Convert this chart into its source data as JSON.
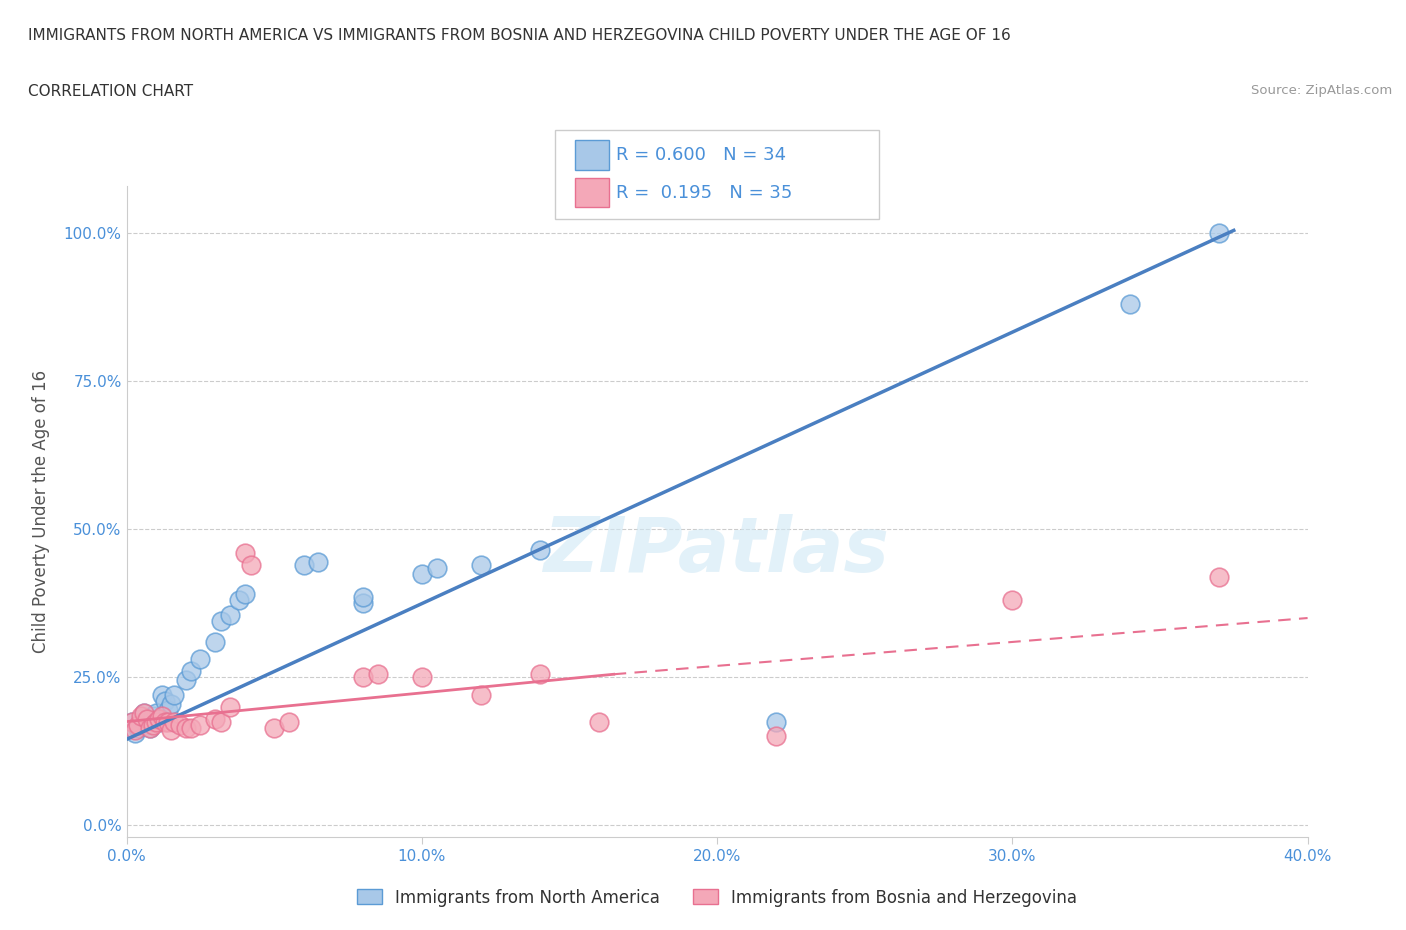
{
  "title": "IMMIGRANTS FROM NORTH AMERICA VS IMMIGRANTS FROM BOSNIA AND HERZEGOVINA CHILD POVERTY UNDER THE AGE OF 16",
  "subtitle": "CORRELATION CHART",
  "source": "Source: ZipAtlas.com",
  "ylabel": "Child Poverty Under the Age of 16",
  "xlim": [
    0.0,
    0.4
  ],
  "ylim": [
    -0.02,
    1.08
  ],
  "yticks": [
    0.0,
    0.25,
    0.5,
    0.75,
    1.0
  ],
  "ytick_labels": [
    "0.0%",
    "25.0%",
    "50.0%",
    "75.0%",
    "100.0%"
  ],
  "xticks": [
    0.0,
    0.1,
    0.2,
    0.3,
    0.4
  ],
  "xtick_labels": [
    "0.0%",
    "10.0%",
    "20.0%",
    "30.0%",
    "40.0%"
  ],
  "watermark": "ZIPatlas",
  "legend_blue_label": "Immigrants from North America",
  "legend_pink_label": "Immigrants from Bosnia and Herzegovina",
  "legend_blue_color": "#a8c8e8",
  "legend_pink_color": "#f4a8b8",
  "blue_edge": "#5b9bd5",
  "pink_edge": "#e87090",
  "corr_box": {
    "blue_R": "0.600",
    "blue_N": "34",
    "pink_R": "0.195",
    "pink_N": "35",
    "text_color": "#4a90d9"
  },
  "blue_scatter": [
    [
      0.002,
      0.175
    ],
    [
      0.003,
      0.155
    ],
    [
      0.004,
      0.165
    ],
    [
      0.005,
      0.18
    ],
    [
      0.006,
      0.19
    ],
    [
      0.007,
      0.17
    ],
    [
      0.008,
      0.165
    ],
    [
      0.009,
      0.185
    ],
    [
      0.01,
      0.19
    ],
    [
      0.011,
      0.175
    ],
    [
      0.012,
      0.22
    ],
    [
      0.013,
      0.21
    ],
    [
      0.014,
      0.195
    ],
    [
      0.015,
      0.205
    ],
    [
      0.016,
      0.22
    ],
    [
      0.02,
      0.245
    ],
    [
      0.022,
      0.26
    ],
    [
      0.025,
      0.28
    ],
    [
      0.03,
      0.31
    ],
    [
      0.032,
      0.345
    ],
    [
      0.035,
      0.355
    ],
    [
      0.038,
      0.38
    ],
    [
      0.04,
      0.39
    ],
    [
      0.06,
      0.44
    ],
    [
      0.065,
      0.445
    ],
    [
      0.08,
      0.375
    ],
    [
      0.08,
      0.385
    ],
    [
      0.1,
      0.425
    ],
    [
      0.105,
      0.435
    ],
    [
      0.12,
      0.44
    ],
    [
      0.14,
      0.465
    ],
    [
      0.22,
      0.175
    ],
    [
      0.34,
      0.88
    ],
    [
      0.37,
      1.0
    ]
  ],
  "pink_scatter": [
    [
      0.002,
      0.175
    ],
    [
      0.003,
      0.16
    ],
    [
      0.004,
      0.17
    ],
    [
      0.005,
      0.185
    ],
    [
      0.006,
      0.19
    ],
    [
      0.007,
      0.18
    ],
    [
      0.008,
      0.165
    ],
    [
      0.009,
      0.17
    ],
    [
      0.01,
      0.175
    ],
    [
      0.011,
      0.18
    ],
    [
      0.012,
      0.185
    ],
    [
      0.013,
      0.175
    ],
    [
      0.014,
      0.175
    ],
    [
      0.015,
      0.16
    ],
    [
      0.016,
      0.175
    ],
    [
      0.018,
      0.17
    ],
    [
      0.02,
      0.165
    ],
    [
      0.022,
      0.165
    ],
    [
      0.025,
      0.17
    ],
    [
      0.03,
      0.18
    ],
    [
      0.032,
      0.175
    ],
    [
      0.035,
      0.2
    ],
    [
      0.04,
      0.46
    ],
    [
      0.042,
      0.44
    ],
    [
      0.05,
      0.165
    ],
    [
      0.055,
      0.175
    ],
    [
      0.08,
      0.25
    ],
    [
      0.085,
      0.255
    ],
    [
      0.1,
      0.25
    ],
    [
      0.12,
      0.22
    ],
    [
      0.14,
      0.255
    ],
    [
      0.16,
      0.175
    ],
    [
      0.22,
      0.15
    ],
    [
      0.3,
      0.38
    ],
    [
      0.37,
      0.42
    ]
  ],
  "blue_line": {
    "x0": 0.0,
    "y0": 0.145,
    "x1": 0.375,
    "y1": 1.005
  },
  "pink_line_solid": {
    "x0": 0.0,
    "y0": 0.175,
    "x1": 0.165,
    "y1": 0.255
  },
  "pink_line_dash": {
    "x0": 0.165,
    "y0": 0.255,
    "x1": 0.4,
    "y1": 0.35
  },
  "blue_line_color": "#4a7fc1",
  "pink_line_color": "#e87090",
  "background_color": "#ffffff",
  "grid_color": "#cccccc",
  "title_color": "#333333",
  "tick_color": "#4a90d9"
}
